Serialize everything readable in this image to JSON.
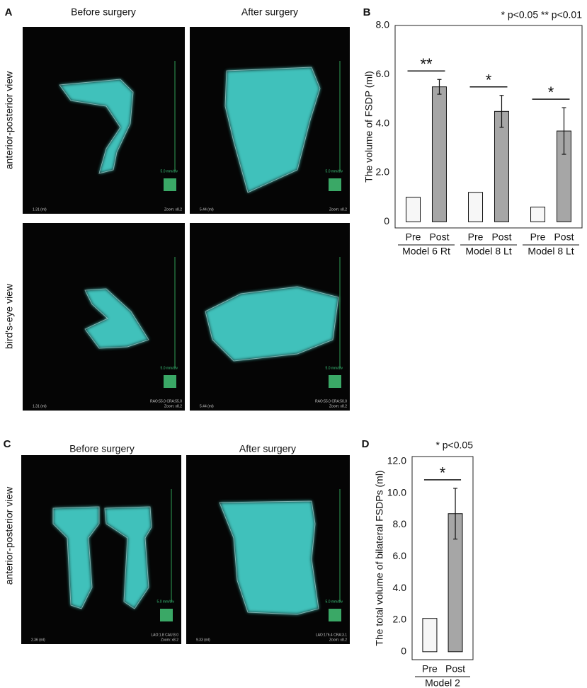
{
  "panels": [
    {
      "label": "A",
      "columns": [
        "Before surgery",
        "After surgery"
      ],
      "rows": [
        "anterior-posterior view",
        "bird's-eye view"
      ],
      "images": [
        {
          "volume": "1.31 (ml)",
          "zoom": "Zoom: x8.2",
          "scale": "5.0 mm/div"
        },
        {
          "volume": "5.44 (ml)",
          "zoom": "Zoom: x8.2",
          "scale": "5.0 mm/div"
        },
        {
          "volume": "1.31 (ml)",
          "view": "RAO:55.0 CRA:55.0",
          "zoom": "Zoom: x8.2",
          "scale": "5.0 mm/div"
        },
        {
          "volume": "5.44 (ml)",
          "view": "RAO:55.0 CRA:50.0",
          "zoom": "Zoom: x8.2",
          "scale": "5.0 mm/div"
        }
      ]
    },
    {
      "label": "C",
      "columns": [
        "Before surgery",
        "After surgery"
      ],
      "rows": [
        "anterior-posterior view"
      ],
      "images": [
        {
          "volume": "2.36 (ml)",
          "view": "LAO:1.8 CAU:8.0",
          "zoom": "Zoom: x8.2",
          "scale": "5.0 mm/div"
        },
        {
          "volume": "9.33 (ml)",
          "view": "LAO:176.4 CRA:3.1",
          "zoom": "Zoom: x8.2",
          "scale": "5.0 mm/div"
        }
      ]
    }
  ],
  "chart_data": [
    {
      "type": "bar",
      "panel_label": "B",
      "annotation": "* p<0.05  ** p<0.01",
      "ylabel": "The volume of FSDP (ml)",
      "categories": [
        "Model 6 Rt",
        "Model 8 Lt",
        "Model 8 Lt"
      ],
      "series": [
        {
          "name": "Pre",
          "color": "#f7f7f7",
          "values": [
            1.0,
            1.2,
            0.6
          ]
        },
        {
          "name": "Post",
          "color": "#a6a6a6",
          "values": [
            5.5,
            4.5,
            3.7
          ],
          "errors": [
            0.3,
            0.65,
            0.95
          ],
          "significance": [
            "**",
            "*",
            "*"
          ]
        }
      ],
      "ylim": [
        -0.25,
        8
      ],
      "yticks": [
        0,
        {
          "value": 2,
          "label": "2.0"
        },
        {
          "value": 4,
          "label": "4.0"
        },
        {
          "value": 6,
          "label": "6.0"
        },
        {
          "value": 8,
          "label": "8.0"
        }
      ]
    },
    {
      "type": "bar",
      "panel_label": "D",
      "annotation": "* p<0.05",
      "ylabel": "The total volume of bilateral FSDPs (ml)",
      "categories": [
        "Model 2"
      ],
      "series": [
        {
          "name": "Pre",
          "color": "#f7f7f7",
          "values": [
            2.1
          ]
        },
        {
          "name": "Post",
          "color": "#a6a6a6",
          "values": [
            8.7
          ],
          "errors": [
            1.6
          ],
          "significance": [
            "*"
          ]
        }
      ],
      "ylim": [
        -0.5,
        12.3
      ],
      "yticks": [
        0,
        {
          "value": 2,
          "label": "2.0"
        },
        {
          "value": 4,
          "label": "4.0"
        },
        {
          "value": 6,
          "label": "6.0"
        },
        {
          "value": 8,
          "label": "8.0"
        },
        {
          "value": 10,
          "label": "10.0"
        },
        {
          "value": 12,
          "label": "12.0"
        }
      ]
    }
  ]
}
